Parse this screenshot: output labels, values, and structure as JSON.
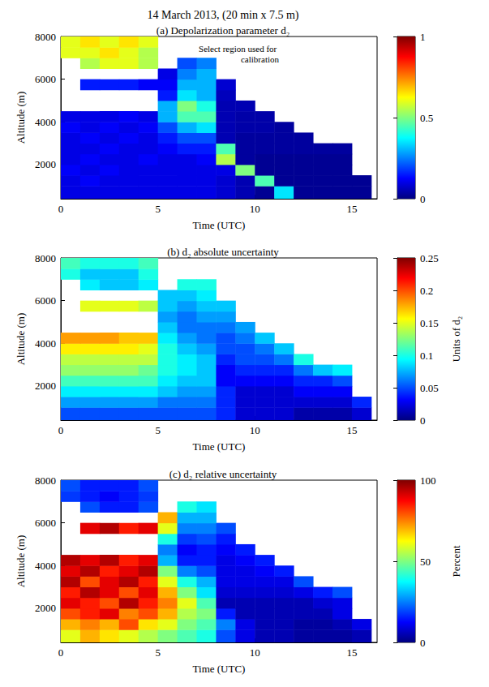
{
  "title": "14 March 2013, (20 min x 7.5 m)",
  "chart_data": [
    {
      "type": "heatmap",
      "title": "(a) Depolarization parameter d₂",
      "annotation": "Select region used for calibration",
      "x_label": "Time (UTC)",
      "y_label": "Altitude (m)",
      "xlim": [
        0,
        16.3
      ],
      "xticks": [
        0,
        5,
        10,
        15
      ],
      "ylim": [
        400,
        8000
      ],
      "yticks": [
        2000,
        4000,
        6000,
        8000
      ],
      "grid": false,
      "x_edges": [
        0,
        1,
        2,
        3,
        4,
        5,
        6,
        7,
        8,
        9,
        10,
        11,
        12,
        13,
        14,
        15,
        16
      ],
      "y_edges": [
        400,
        1000,
        1500,
        2000,
        2500,
        3000,
        3500,
        4000,
        4500,
        5000,
        5500,
        6000,
        6500,
        7000,
        7500,
        8000
      ],
      "cells": [
        [
          0.1,
          0.1,
          0.1,
          0.1,
          0.1,
          0.1,
          0.1,
          0.1,
          0.08,
          0.05,
          0.02,
          0.35,
          0.02,
          0.02,
          0.02,
          0.02
        ],
        [
          0.1,
          0.12,
          0.1,
          0.1,
          0.1,
          0.1,
          0.1,
          0.1,
          0.08,
          0.05,
          0.45,
          0.02,
          0.02,
          0.02,
          0.02,
          0.02
        ],
        [
          0.12,
          0.1,
          0.12,
          0.1,
          0.1,
          0.1,
          0.1,
          0.1,
          0.1,
          0.5,
          0.02,
          0.02,
          0.02,
          0.02,
          0.02,
          null
        ],
        [
          0.1,
          0.12,
          0.1,
          0.1,
          0.12,
          0.1,
          0.1,
          0.12,
          0.55,
          0.03,
          0.02,
          0.02,
          0.02,
          0.02,
          0.02,
          null
        ],
        [
          0.1,
          0.1,
          0.12,
          0.1,
          0.1,
          0.12,
          0.15,
          0.15,
          0.45,
          0.03,
          0.03,
          0.03,
          0.03,
          0.03,
          0.03,
          null
        ],
        [
          0.1,
          0.12,
          0.1,
          0.12,
          0.1,
          0.15,
          0.2,
          0.2,
          0.05,
          0.03,
          0.03,
          0.03,
          0.03,
          null,
          null,
          null
        ],
        [
          0.12,
          0.1,
          0.12,
          0.1,
          0.12,
          0.2,
          0.3,
          0.35,
          0.05,
          0.04,
          0.04,
          0.03,
          null,
          null,
          null,
          null
        ],
        [
          0.1,
          0.1,
          0.1,
          0.12,
          0.1,
          0.3,
          0.45,
          0.45,
          0.05,
          0.04,
          0.04,
          null,
          null,
          null,
          null,
          null
        ],
        [
          null,
          null,
          null,
          null,
          null,
          0.3,
          0.5,
          0.4,
          0.05,
          0.05,
          null,
          null,
          null,
          null,
          null,
          null
        ],
        [
          null,
          null,
          null,
          null,
          null,
          0.15,
          0.35,
          0.3,
          0.06,
          null,
          null,
          null,
          null,
          null,
          null,
          null
        ],
        [
          null,
          0.15,
          0.15,
          0.15,
          0.12,
          0.12,
          0.3,
          0.3,
          0.08,
          null,
          null,
          null,
          null,
          null,
          null,
          null
        ],
        [
          null,
          null,
          null,
          null,
          null,
          0.1,
          0.25,
          0.3,
          null,
          null,
          null,
          null,
          null,
          null,
          null,
          null
        ],
        [
          null,
          0.55,
          0.6,
          0.6,
          0.55,
          null,
          0.2,
          0.25,
          null,
          null,
          null,
          null,
          null,
          null,
          null,
          null
        ],
        [
          0.6,
          0.6,
          0.65,
          0.6,
          0.55,
          null,
          null,
          null,
          null,
          null,
          null,
          null,
          null,
          null,
          null,
          null
        ],
        [
          0.6,
          0.65,
          0.6,
          0.65,
          0.6,
          null,
          null,
          null,
          null,
          null,
          null,
          null,
          null,
          null,
          null,
          null
        ]
      ],
      "colorbar": {
        "range": [
          0,
          1
        ],
        "ticks": [
          0,
          0.5,
          1
        ]
      }
    },
    {
      "type": "heatmap",
      "title": "(b) d₂ absolute uncertainty",
      "x_label": "Time (UTC)",
      "y_label": "Altitude (m)",
      "xlim": [
        0,
        16.3
      ],
      "xticks": [
        0,
        5,
        10,
        15
      ],
      "ylim": [
        400,
        8000
      ],
      "yticks": [
        2000,
        4000,
        6000,
        8000
      ],
      "grid": false,
      "x_edges": [
        0,
        1,
        2,
        3,
        4,
        5,
        6,
        7,
        8,
        9,
        10,
        11,
        12,
        13,
        14,
        15,
        16
      ],
      "y_edges": [
        400,
        1000,
        1500,
        2000,
        2500,
        3000,
        3500,
        4000,
        4500,
        5000,
        5500,
        6000,
        6500,
        7000,
        7500,
        8000
      ],
      "cells": [
        [
          0.05,
          0.05,
          0.05,
          0.05,
          0.05,
          0.05,
          0.05,
          0.05,
          0.04,
          0.02,
          0.02,
          0.02,
          0.01,
          0.01,
          0.01,
          0.02
        ],
        [
          0.07,
          0.07,
          0.07,
          0.07,
          0.07,
          0.06,
          0.06,
          0.06,
          0.04,
          0.02,
          0.02,
          0.02,
          0.02,
          0.02,
          0.02,
          0.04
        ],
        [
          0.09,
          0.09,
          0.09,
          0.09,
          0.09,
          0.08,
          0.07,
          0.07,
          0.04,
          0.02,
          0.02,
          0.02,
          0.03,
          0.03,
          0.03,
          null
        ],
        [
          0.11,
          0.11,
          0.11,
          0.11,
          0.11,
          0.09,
          0.08,
          0.08,
          0.03,
          0.03,
          0.03,
          0.03,
          0.04,
          0.04,
          0.05,
          null
        ],
        [
          0.13,
          0.13,
          0.13,
          0.13,
          0.12,
          0.1,
          0.09,
          0.08,
          0.03,
          0.04,
          0.04,
          0.04,
          0.06,
          0.08,
          0.09,
          null
        ],
        [
          0.14,
          0.14,
          0.14,
          0.14,
          0.14,
          0.1,
          0.09,
          0.08,
          0.04,
          0.05,
          0.05,
          0.06,
          0.1,
          null,
          null,
          null
        ],
        [
          0.16,
          0.16,
          0.16,
          0.16,
          0.15,
          0.1,
          0.08,
          0.07,
          0.05,
          0.05,
          0.06,
          0.08,
          null,
          null,
          null,
          null
        ],
        [
          0.18,
          0.18,
          0.18,
          0.17,
          0.17,
          0.09,
          0.07,
          0.06,
          0.05,
          0.06,
          0.08,
          null,
          null,
          null,
          null,
          null
        ],
        [
          null,
          null,
          null,
          null,
          null,
          0.08,
          0.06,
          0.06,
          0.06,
          0.07,
          null,
          null,
          null,
          null,
          null,
          null
        ],
        [
          null,
          null,
          null,
          null,
          null,
          0.07,
          0.06,
          0.07,
          0.07,
          null,
          null,
          null,
          null,
          null,
          null,
          null
        ],
        [
          null,
          0.15,
          0.15,
          0.15,
          0.14,
          0.08,
          0.07,
          0.08,
          0.08,
          null,
          null,
          null,
          null,
          null,
          null,
          null
        ],
        [
          null,
          null,
          null,
          null,
          null,
          0.08,
          0.08,
          0.09,
          null,
          null,
          null,
          null,
          null,
          null,
          null,
          null
        ],
        [
          null,
          0.09,
          0.08,
          0.08,
          0.09,
          null,
          0.1,
          0.1,
          null,
          null,
          null,
          null,
          null,
          null,
          null,
          null
        ],
        [
          0.1,
          0.08,
          0.08,
          0.08,
          0.1,
          null,
          null,
          null,
          null,
          null,
          null,
          null,
          null,
          null,
          null,
          null
        ],
        [
          0.11,
          0.1,
          0.1,
          0.1,
          0.11,
          null,
          null,
          null,
          null,
          null,
          null,
          null,
          null,
          null,
          null,
          null
        ]
      ],
      "colorbar": {
        "range": [
          0,
          0.25
        ],
        "ticks": [
          0,
          0.05,
          0.1,
          0.15,
          0.2,
          0.25
        ],
        "label": "Units of d₂"
      }
    },
    {
      "type": "heatmap",
      "title": "(c) d₂ relative uncertainty",
      "x_label": "Time (UTC)",
      "y_label": "Altitude (m)",
      "xlim": [
        0,
        16.3
      ],
      "xticks": [
        0,
        5,
        10,
        15
      ],
      "ylim": [
        400,
        8000
      ],
      "yticks": [
        2000,
        4000,
        6000,
        8000
      ],
      "grid": false,
      "x_edges": [
        0,
        1,
        2,
        3,
        4,
        5,
        6,
        7,
        8,
        9,
        10,
        11,
        12,
        13,
        14,
        15,
        16
      ],
      "y_edges": [
        400,
        1000,
        1500,
        2000,
        2500,
        3000,
        3500,
        4000,
        4500,
        5000,
        5500,
        6000,
        6500,
        7000,
        7500,
        8000
      ],
      "cells": [
        [
          60,
          70,
          65,
          60,
          55,
          50,
          45,
          40,
          20,
          10,
          5,
          5,
          3,
          3,
          3,
          5
        ],
        [
          70,
          75,
          70,
          80,
          65,
          60,
          50,
          45,
          25,
          10,
          5,
          5,
          3,
          3,
          5,
          10
        ],
        [
          80,
          85,
          90,
          75,
          80,
          70,
          55,
          50,
          15,
          5,
          5,
          5,
          5,
          5,
          10,
          null
        ],
        [
          90,
          85,
          80,
          95,
          85,
          75,
          60,
          45,
          5,
          5,
          5,
          5,
          5,
          8,
          10,
          null
        ],
        [
          85,
          95,
          90,
          80,
          90,
          70,
          50,
          35,
          8,
          8,
          8,
          8,
          10,
          15,
          20,
          null
        ],
        [
          95,
          80,
          90,
          95,
          85,
          60,
          40,
          30,
          10,
          10,
          10,
          10,
          20,
          null,
          null,
          null
        ],
        [
          90,
          95,
          85,
          90,
          95,
          50,
          25,
          20,
          10,
          10,
          12,
          15,
          null,
          null,
          null,
          null
        ],
        [
          95,
          90,
          95,
          85,
          90,
          30,
          15,
          15,
          10,
          12,
          15,
          null,
          null,
          null,
          null,
          null
        ],
        [
          null,
          null,
          null,
          null,
          null,
          25,
          12,
          15,
          12,
          15,
          null,
          null,
          null,
          null,
          null,
          null
        ],
        [
          null,
          null,
          null,
          null,
          null,
          40,
          18,
          20,
          15,
          null,
          null,
          null,
          null,
          null,
          null,
          null
        ],
        [
          null,
          90,
          95,
          85,
          90,
          60,
          25,
          25,
          20,
          null,
          null,
          null,
          null,
          null,
          null,
          null
        ],
        [
          null,
          null,
          null,
          null,
          null,
          70,
          30,
          30,
          null,
          null,
          null,
          null,
          null,
          null,
          null,
          null
        ],
        [
          null,
          20,
          15,
          15,
          20,
          null,
          40,
          35,
          null,
          null,
          null,
          null,
          null,
          null,
          null,
          null
        ],
        [
          18,
          15,
          12,
          15,
          18,
          null,
          null,
          null,
          null,
          null,
          null,
          null,
          null,
          null,
          null,
          null
        ],
        [
          20,
          15,
          15,
          15,
          20,
          null,
          null,
          null,
          null,
          null,
          null,
          null,
          null,
          null,
          null,
          null
        ]
      ],
      "colorbar": {
        "range": [
          0,
          100
        ],
        "ticks": [
          0,
          50,
          100
        ],
        "label": "Percent"
      }
    }
  ]
}
